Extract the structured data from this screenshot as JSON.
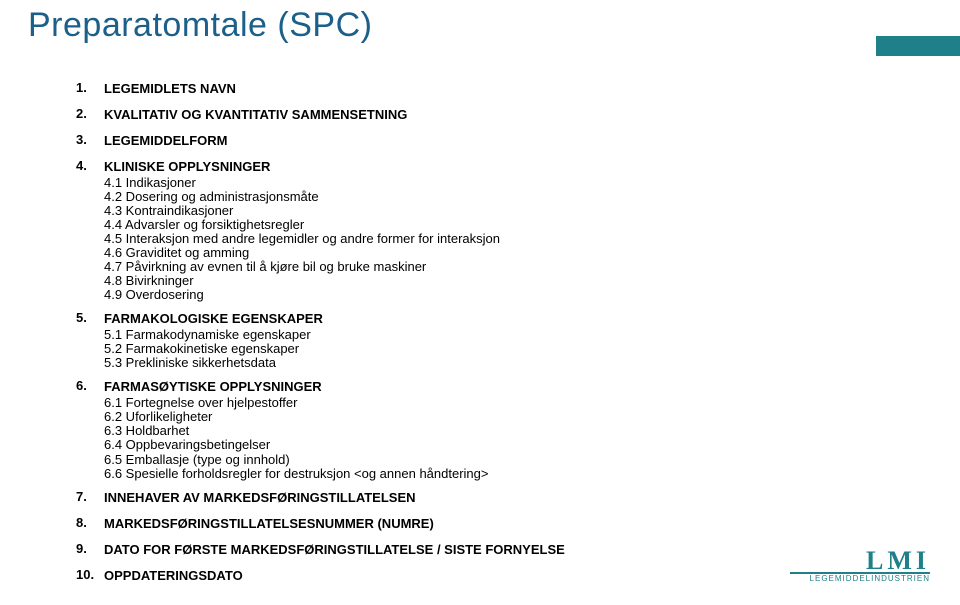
{
  "title": "Preparatomtale (SPC)",
  "colors": {
    "title": "#1b5f8a",
    "accent": "#20808a",
    "text": "#000000",
    "background": "#ffffff"
  },
  "sections": [
    {
      "num": "1.",
      "heading": "LEGEMIDLETS NAVN",
      "subs": []
    },
    {
      "num": "2.",
      "heading": "KVALITATIV OG KVANTITATIV SAMMENSETNING",
      "subs": []
    },
    {
      "num": "3.",
      "heading": "LEGEMIDDELFORM",
      "subs": []
    },
    {
      "num": "4.",
      "heading": "KLINISKE OPPLYSNINGER",
      "subs": [
        "4.1  Indikasjoner",
        "4.2  Dosering og administrasjonsmåte",
        "4.3  Kontraindikasjoner",
        "4.4  Advarsler og forsiktighetsregler",
        "4.5  Interaksjon med andre legemidler og andre former for interaksjon",
        "4.6  Graviditet og amming",
        "4.7  Påvirkning av evnen til å kjøre bil og bruke maskiner",
        "4.8  Bivirkninger",
        "4.9  Overdosering"
      ]
    },
    {
      "num": "5.",
      "heading": "FARMAKOLOGISKE EGENSKAPER",
      "subs": [
        "5.1  Farmakodynamiske egenskaper",
        "5.2  Farmakokinetiske egenskaper",
        "5.3  Prekliniske sikkerhetsdata"
      ]
    },
    {
      "num": "6.",
      "heading": "FARMASØYTISKE OPPLYSNINGER",
      "subs": [
        "6.1  Fortegnelse over hjelpestoffer",
        "6.2  Uforlikeligheter",
        "6.3  Holdbarhet",
        "6.4  Oppbevaringsbetingelser",
        "6.5  Emballasje (type og innhold)",
        "6.6  Spesielle forholdsregler for destruksjon <og annen håndtering>"
      ]
    },
    {
      "num": "7.",
      "heading": "INNEHAVER AV MARKEDSFØRINGSTILLATELSEN",
      "subs": []
    },
    {
      "num": "8.",
      "heading": "MARKEDSFØRINGSTILLATELSESNUMMER (NUMRE)",
      "subs": []
    },
    {
      "num": "9.",
      "heading": "DATO FOR FØRSTE MARKEDSFØRINGSTILLATELSE / SISTE FORNYELSE",
      "subs": []
    },
    {
      "num": "10.",
      "heading": "OPPDATERINGSDATO",
      "subs": []
    }
  ],
  "logo": {
    "main": "LMI",
    "sub": "LEGEMIDDELINDUSTRIEN"
  }
}
